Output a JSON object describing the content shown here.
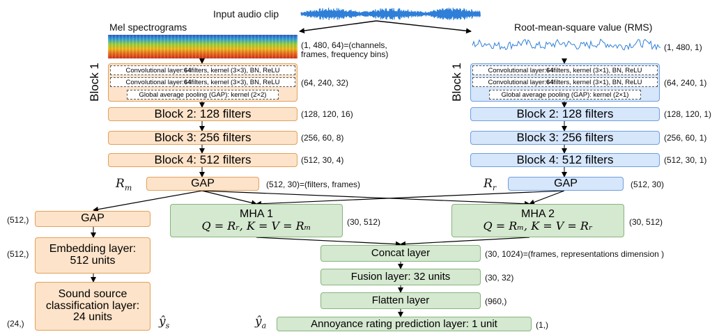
{
  "input": {
    "label": "Input audio clip"
  },
  "mel": {
    "title": "Mel spectrograms",
    "shape_line1": "(1, 480, 64)=(channels,",
    "shape_line2": "frames, frequency bins)",
    "block1_label": "Block 1",
    "conv1": {
      "pre": "Convolutional layer: ",
      "bold": "64",
      "post": " filters, kernel (3×3), BN, ReLU"
    },
    "conv2": {
      "pre": "Convolutional layer: ",
      "bold": "64",
      "post": " filters, kernel (3×3), BN, ReLU"
    },
    "gap_inner": "Global average pooling (GAP): kernel (2×2)",
    "block1_shape": "(64, 240, 32)",
    "block2": "Block 2: 128 filters",
    "block2_shape": "(128, 120, 16)",
    "block3": "Block 3: 256 filters",
    "block3_shape": "(256, 60, 8)",
    "block4": "Block 4: 512 filters",
    "block4_shape": "(512, 30, 4)",
    "r_label": "R",
    "r_sub": "m",
    "gap": "GAP",
    "gap_shape": "(512, 30)=(filters, frames)"
  },
  "rms": {
    "title": "Root-mean-square value (RMS)",
    "shape": "(1, 480, 1)",
    "block1_label": "Block 1",
    "conv1": {
      "pre": "Convolutional layer: ",
      "bold": "64",
      "post": " filters, kernel (3×1), BN, ReLU"
    },
    "conv2": {
      "pre": "Convolutional layer: ",
      "bold": "64",
      "post": " filters, kernel (3×1), BN, ReLU"
    },
    "gap_inner": "Global average pooling (GAP): kernel (2×1)",
    "block1_shape": "(64, 240, 1)",
    "block2": "Block 2: 128 filters",
    "block2_shape": "(128, 120, 1)",
    "block3": "Block 3: 256 filters",
    "block3_shape": "(256, 60, 1)",
    "block4": "Block 4: 512 filters",
    "block4_shape": "(512, 30, 1)",
    "r_label": "R",
    "r_sub": "r",
    "gap": "GAP",
    "gap_shape": "(512, 30)"
  },
  "sound_branch": {
    "gap": "GAP",
    "gap_shape": "(512,)",
    "embed_line1": "Embedding layer:",
    "embed_line2": "512 units",
    "embed_shape": "(512,)",
    "cls_line1": "Sound source",
    "cls_line2": "classification layer:",
    "cls_line3": "24 units",
    "cls_shape": "(24,)",
    "output": "ŷ",
    "output_sub": "s"
  },
  "mha1": {
    "title": "MHA 1",
    "formula": "Q = Rᵣ, K = V = Rₘ",
    "shape": "(30, 512)"
  },
  "mha2": {
    "title": "MHA 2",
    "formula": "Q = Rₘ, K = V = Rᵣ",
    "shape": "(30, 512)"
  },
  "concat": {
    "label": "Concat layer",
    "shape": "(30, 1024)=(frames, representations dimension )"
  },
  "fusion": {
    "label": "Fusion layer: 32 units",
    "shape": "(30, 32)"
  },
  "flatten": {
    "label": "Flatten layer",
    "shape": "(960,)"
  },
  "annoyance": {
    "label": "Annoyance rating prediction layer: 1 unit",
    "shape": "(1,)",
    "output": "ŷ",
    "output_sub": "a"
  },
  "colors": {
    "mel_branch": "#fde3c9",
    "rms_branch": "#d6e6fb",
    "fusion": "#d5e8d0",
    "waveform": "#2f7fd8"
  }
}
